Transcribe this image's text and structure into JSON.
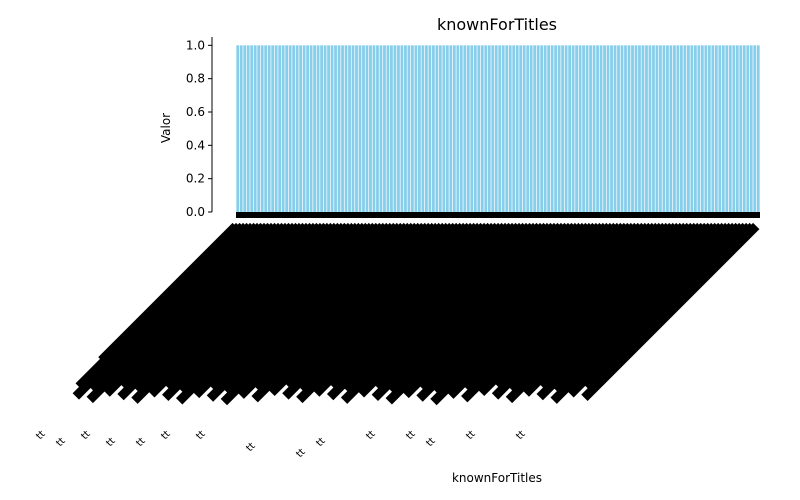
{
  "chart_data": {
    "type": "bar",
    "title": "knownForTitles",
    "xlabel": "knownForTitles",
    "ylabel": "Valor",
    "ylim": [
      0,
      1.05
    ],
    "yticks": [
      "0.0",
      "0.2",
      "0.4",
      "0.6",
      "0.8",
      "1.0"
    ],
    "bar_color": "#87ceeb",
    "category_count": 150,
    "bar_value": 1.0,
    "tick_label_text": "tt",
    "x_tick_rotation": 45,
    "grid": false,
    "legend": "none"
  }
}
